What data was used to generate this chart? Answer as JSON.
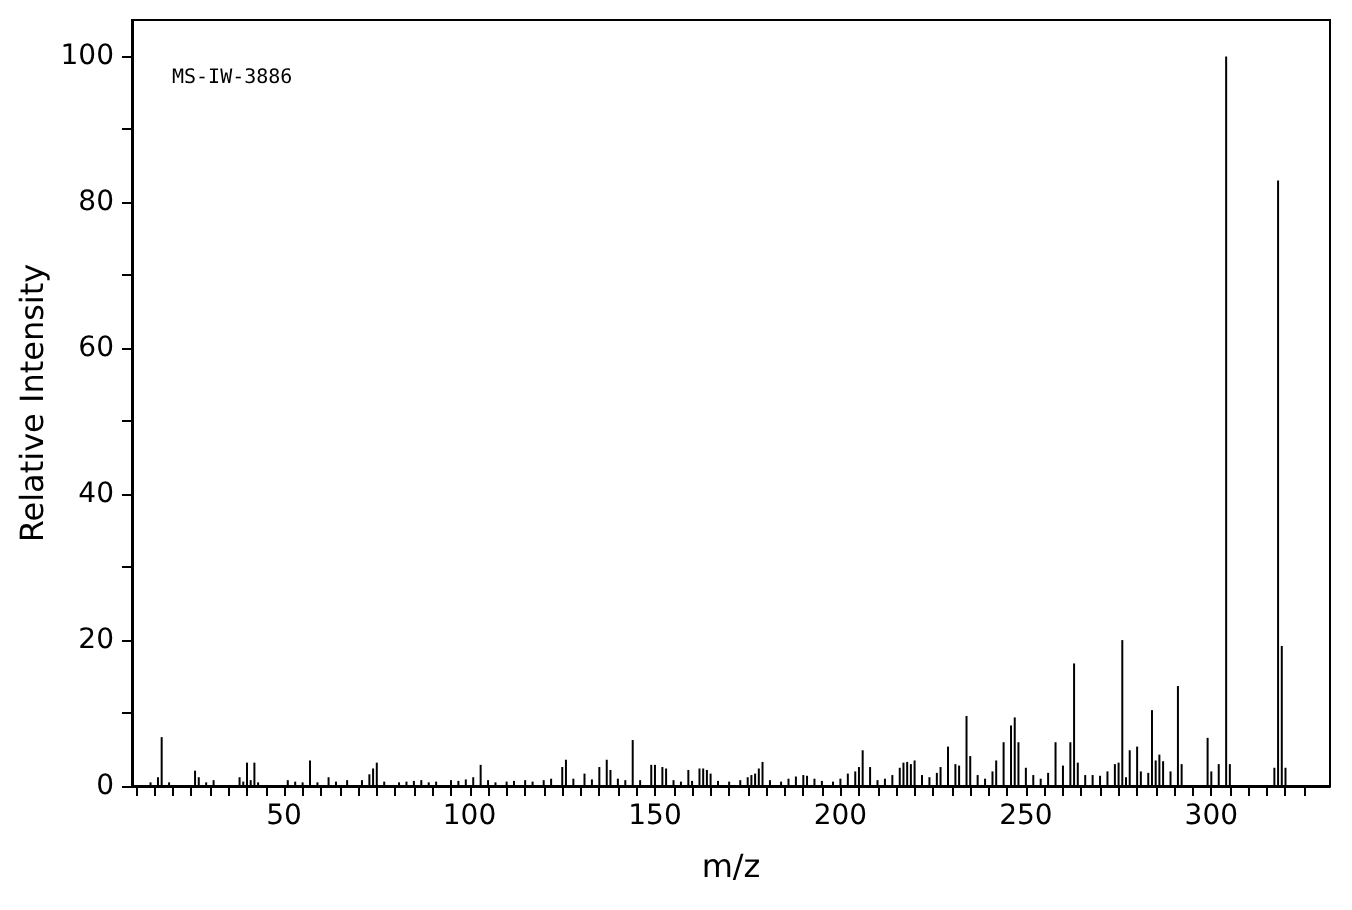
{
  "chart_data": {
    "type": "bar",
    "xlabel": "m/z",
    "ylabel": "Relative Intensity",
    "annotations": [
      "MS-IW-3886"
    ],
    "color": "#000000",
    "x": [
      14,
      16,
      17,
      19,
      26,
      27,
      29,
      31,
      38,
      39,
      40,
      41,
      42,
      43,
      51,
      53,
      55,
      57,
      59,
      62,
      64,
      67,
      71,
      73,
      74,
      75,
      77,
      81,
      83,
      85,
      87,
      89,
      91,
      95,
      97,
      99,
      101,
      103,
      105,
      107,
      110,
      112,
      115,
      117,
      120,
      122,
      125,
      126,
      128,
      131,
      133,
      135,
      137,
      138,
      140,
      142,
      144,
      146,
      149,
      150,
      152,
      153,
      155,
      157,
      159,
      160,
      162,
      163,
      164,
      165,
      167,
      170,
      173,
      175,
      176,
      177,
      178,
      179,
      181,
      184,
      186,
      188,
      190,
      191,
      193,
      195,
      198,
      200,
      202,
      204,
      205,
      206,
      208,
      210,
      212,
      214,
      216,
      217,
      218,
      219,
      220,
      222,
      224,
      226,
      227,
      229,
      231,
      232,
      234,
      235,
      237,
      239,
      241,
      242,
      244,
      246,
      247,
      248,
      250,
      252,
      254,
      256,
      258,
      260,
      262,
      263,
      264,
      266,
      268,
      270,
      272,
      274,
      275,
      276,
      277,
      278,
      280,
      281,
      283,
      284,
      285,
      286,
      287,
      289,
      291,
      292,
      299,
      300,
      302,
      304,
      305,
      317,
      318,
      319,
      320
    ],
    "values": [
      0.5,
      1.2,
      6.7,
      0.5,
      2.1,
      1.2,
      0.5,
      0.8,
      1.2,
      0.6,
      3.2,
      0.8,
      3.2,
      0.5,
      0.8,
      0.6,
      0.5,
      3.5,
      0.5,
      1.2,
      0.6,
      0.8,
      0.8,
      1.6,
      2.4,
      3.2,
      0.6,
      0.5,
      0.6,
      0.7,
      0.8,
      0.5,
      0.6,
      0.8,
      0.7,
      0.9,
      1.2,
      2.9,
      0.8,
      0.5,
      0.6,
      0.7,
      0.8,
      0.6,
      0.8,
      1.0,
      2.6,
      3.6,
      1.0,
      1.7,
      0.9,
      2.6,
      3.6,
      2.2,
      1.0,
      0.8,
      6.3,
      0.8,
      2.9,
      2.9,
      2.6,
      2.4,
      0.8,
      0.6,
      2.2,
      0.7,
      2.4,
      2.4,
      2.2,
      1.7,
      0.7,
      0.6,
      0.8,
      1.2,
      1.5,
      1.7,
      2.4,
      3.3,
      0.8,
      0.6,
      1.0,
      1.3,
      1.5,
      1.4,
      1.0,
      0.7,
      0.6,
      1.0,
      1.7,
      2.0,
      2.6,
      4.9,
      2.6,
      0.8,
      1.0,
      1.5,
      2.5,
      3.2,
      3.3,
      3.0,
      3.5,
      1.5,
      1.2,
      1.8,
      2.6,
      5.4,
      3.0,
      2.8,
      9.6,
      4.1,
      1.5,
      1.0,
      2.0,
      3.5,
      6.0,
      8.3,
      9.4,
      6.0,
      2.5,
      1.5,
      1.0,
      1.8,
      6.0,
      2.8,
      6.0,
      16.8,
      3.2,
      1.5,
      1.5,
      1.4,
      2.0,
      3.0,
      3.2,
      20,
      1.2,
      4.9,
      5.4,
      2.0,
      1.8,
      10.4,
      3.5,
      4.3,
      3.4,
      2.0,
      13.7,
      3.0,
      6.6,
      2.0,
      3.0,
      100,
      3,
      2.5,
      83,
      19.2,
      2.5
    ],
    "xlim": [
      9,
      332
    ],
    "xticks": [
      {
        "value": 10,
        "label": null
      },
      {
        "value": 15,
        "label": null
      },
      {
        "value": 20,
        "label": null
      },
      {
        "value": 25,
        "label": null
      },
      {
        "value": 30,
        "label": null
      },
      {
        "value": 35,
        "label": null
      },
      {
        "value": 40,
        "label": null
      },
      {
        "value": 45,
        "label": null
      },
      50,
      {
        "value": 55,
        "label": null
      },
      {
        "value": 60,
        "label": null
      },
      {
        "value": 65,
        "label": null
      },
      {
        "value": 70,
        "label": null
      },
      {
        "value": 75,
        "label": null
      },
      {
        "value": 80,
        "label": null
      },
      {
        "value": 85,
        "label": null
      },
      {
        "value": 90,
        "label": null
      },
      {
        "value": 95,
        "label": null
      },
      100,
      {
        "value": 105,
        "label": null
      },
      {
        "value": 110,
        "label": null
      },
      {
        "value": 115,
        "label": null
      },
      {
        "value": 120,
        "label": null
      },
      {
        "value": 125,
        "label": null
      },
      {
        "value": 130,
        "label": null
      },
      {
        "value": 135,
        "label": null
      },
      {
        "value": 140,
        "label": null
      },
      {
        "value": 145,
        "label": null
      },
      150,
      {
        "value": 155,
        "label": null
      },
      {
        "value": 160,
        "label": null
      },
      {
        "value": 165,
        "label": null
      },
      {
        "value": 170,
        "label": null
      },
      {
        "value": 175,
        "label": null
      },
      {
        "value": 180,
        "label": null
      },
      {
        "value": 185,
        "label": null
      },
      {
        "value": 190,
        "label": null
      },
      {
        "value": 195,
        "label": null
      },
      200,
      {
        "value": 205,
        "label": null
      },
      {
        "value": 210,
        "label": null
      },
      {
        "value": 215,
        "label": null
      },
      {
        "value": 220,
        "label": null
      },
      {
        "value": 225,
        "label": null
      },
      {
        "value": 230,
        "label": null
      },
      {
        "value": 235,
        "label": null
      },
      {
        "value": 240,
        "label": null
      },
      {
        "value": 245,
        "label": null
      },
      250,
      {
        "value": 255,
        "label": null
      },
      {
        "value": 260,
        "label": null
      },
      {
        "value": 265,
        "label": null
      },
      {
        "value": 270,
        "label": null
      },
      {
        "value": 275,
        "label": null
      },
      {
        "value": 280,
        "label": null
      },
      {
        "value": 285,
        "label": null
      },
      {
        "value": 290,
        "label": null
      },
      {
        "value": 295,
        "label": null
      },
      300,
      {
        "value": 305,
        "label": null
      },
      {
        "value": 310,
        "label": null
      },
      {
        "value": 315,
        "label": null
      },
      {
        "value": 320,
        "label": null
      },
      {
        "value": 325,
        "label": null
      }
    ],
    "ylim": [
      0,
      105
    ],
    "yticks": [
      0,
      {
        "value": 10,
        "label": null
      },
      20,
      {
        "value": 30,
        "label": null
      },
      40,
      {
        "value": 50,
        "label": null
      },
      60,
      {
        "value": 70,
        "label": null
      },
      80,
      {
        "value": 90,
        "label": null
      },
      100
    ],
    "grid": false
  }
}
